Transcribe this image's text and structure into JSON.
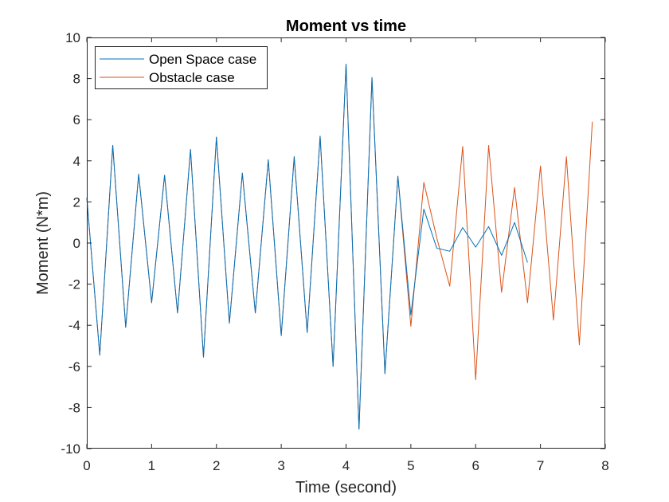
{
  "chart_data": {
    "type": "line",
    "title": "Moment vs time",
    "xlabel": "Time (second)",
    "ylabel": "Moment (N*m)",
    "xlim": [
      0,
      8
    ],
    "ylim": [
      -10,
      10
    ],
    "xticks": [
      0,
      1,
      2,
      3,
      4,
      5,
      6,
      7,
      8
    ],
    "yticks": [
      -10,
      -8,
      -6,
      -4,
      -2,
      0,
      2,
      4,
      6,
      8,
      10
    ],
    "grid": false,
    "legend_position": "top-left",
    "series": [
      {
        "name": "Open Space case",
        "color": "#0072BD",
        "x": [
          0.0,
          0.2,
          0.4,
          0.6,
          0.8,
          1.0,
          1.2,
          1.4,
          1.6,
          1.8,
          2.0,
          2.2,
          2.4,
          2.6,
          2.8,
          3.0,
          3.2,
          3.4,
          3.6,
          3.8,
          4.0,
          4.2,
          4.4,
          4.6,
          4.8,
          5.0,
          5.2,
          5.4,
          5.6,
          5.8,
          6.0,
          6.2,
          6.4,
          6.6,
          6.8
        ],
        "y": [
          2.2,
          -5.45,
          4.75,
          -4.1,
          3.35,
          -2.9,
          3.3,
          -3.4,
          4.55,
          -5.55,
          5.15,
          -3.9,
          3.4,
          -3.4,
          4.05,
          -4.5,
          4.2,
          -4.35,
          5.2,
          -6.0,
          8.7,
          -9.05,
          8.05,
          -6.35,
          3.25,
          -3.5,
          1.65,
          -0.25,
          -0.4,
          0.75,
          -0.2,
          0.8,
          -0.6,
          1.0,
          -0.95
        ]
      },
      {
        "name": "Obstacle case",
        "color": "#D95319",
        "x": [
          0.0,
          0.2,
          0.4,
          0.6,
          0.8,
          1.0,
          1.2,
          1.4,
          1.6,
          1.8,
          2.0,
          2.2,
          2.4,
          2.6,
          2.8,
          3.0,
          3.2,
          3.4,
          3.6,
          3.8,
          4.0,
          4.2,
          4.4,
          4.6,
          4.8,
          5.0,
          5.2,
          5.4,
          5.6,
          5.8,
          6.0,
          6.2,
          6.4,
          6.6,
          6.8,
          7.0,
          7.2,
          7.4,
          7.6,
          7.8
        ],
        "y": [
          2.2,
          -5.45,
          4.75,
          -4.1,
          3.35,
          -2.9,
          3.3,
          -3.4,
          4.55,
          -5.55,
          5.15,
          -3.9,
          3.4,
          -3.4,
          4.05,
          -4.5,
          4.2,
          -4.35,
          5.2,
          -6.0,
          8.7,
          -9.05,
          8.05,
          -6.35,
          3.25,
          -4.05,
          2.95,
          0.25,
          -2.1,
          4.7,
          -6.65,
          4.75,
          -2.4,
          2.7,
          -2.9,
          3.75,
          -3.75,
          4.2,
          -4.95,
          5.9
        ]
      }
    ]
  }
}
